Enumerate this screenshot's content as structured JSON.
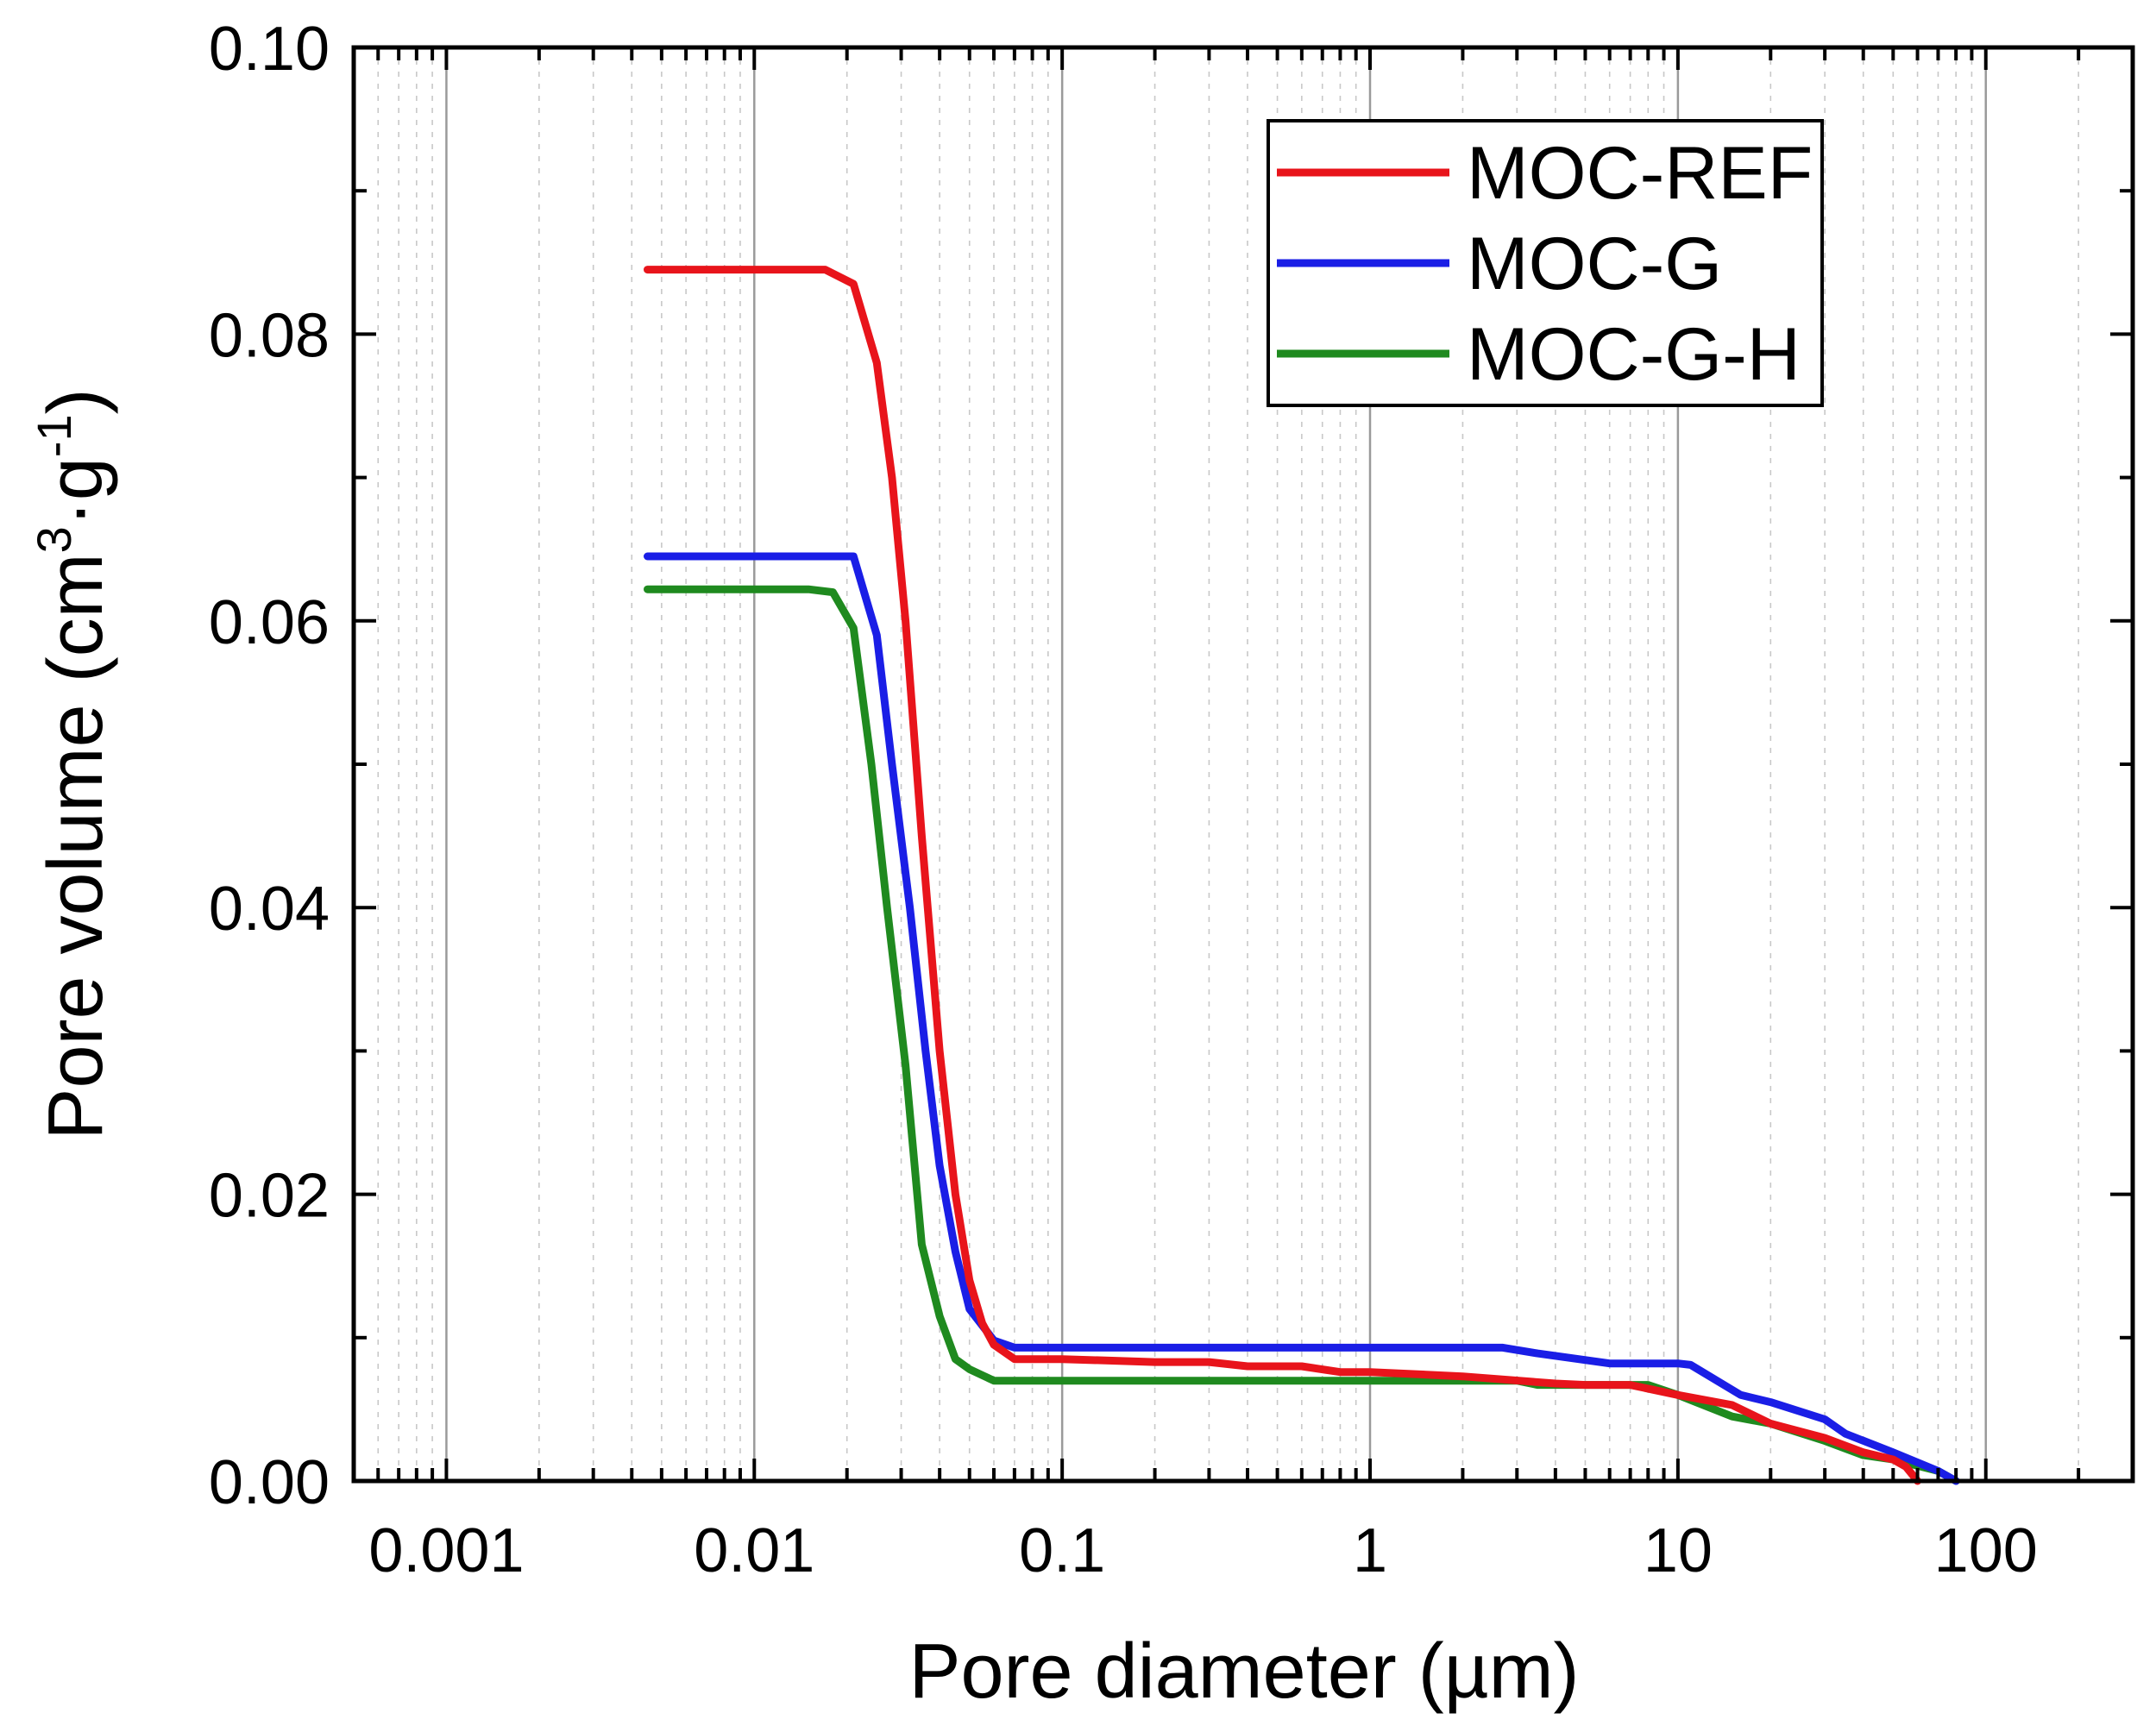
{
  "chart_data": {
    "type": "line",
    "title": "",
    "xlabel": "Pore diameter (µm)",
    "ylabel_main": "Pore volume (cm",
    "ylabel_sup1": "3",
    "ylabel_mid": "·g",
    "ylabel_sup2": "-1",
    "ylabel_end": ")",
    "x_scale": "log",
    "xlim": [
      0.0005,
      300
    ],
    "ylim": [
      0,
      0.1
    ],
    "x_ticks": [
      0.001,
      0.01,
      0.1,
      1,
      10,
      100
    ],
    "x_tick_labels": [
      "0.001",
      "0.01",
      "0.1",
      "1",
      "10",
      "100"
    ],
    "y_ticks": [
      0,
      0.02,
      0.04,
      0.06,
      0.08,
      0.1
    ],
    "y_tick_labels": [
      "0.00",
      "0.02",
      "0.04",
      "0.06",
      "0.08",
      "0.10"
    ],
    "grid": "vertical major and minor",
    "legend_position": "top-right",
    "series": [
      {
        "name": "MOC-REF",
        "color": "#e8141b",
        "x": [
          0.0045,
          0.017,
          0.021,
          0.025,
          0.028,
          0.031,
          0.035,
          0.04,
          0.045,
          0.05,
          0.055,
          0.06,
          0.07,
          0.1,
          0.2,
          0.3,
          0.4,
          0.6,
          0.8,
          1,
          2,
          4,
          5,
          7,
          10,
          15,
          20,
          30,
          40,
          50,
          55,
          60
        ],
        "y": [
          0.0845,
          0.0845,
          0.0835,
          0.078,
          0.07,
          0.06,
          0.045,
          0.03,
          0.02,
          0.014,
          0.011,
          0.0095,
          0.0085,
          0.0085,
          0.0083,
          0.0083,
          0.008,
          0.008,
          0.0076,
          0.0076,
          0.0073,
          0.0068,
          0.0067,
          0.0067,
          0.006,
          0.0053,
          0.004,
          0.003,
          0.002,
          0.0015,
          0.001,
          0.0
        ]
      },
      {
        "name": "MOC-G",
        "color": "#1a1ee6",
        "x": [
          0.0045,
          0.021,
          0.025,
          0.028,
          0.032,
          0.036,
          0.04,
          0.045,
          0.05,
          0.06,
          0.07,
          0.1,
          0.5,
          1,
          2,
          2.7,
          3.5,
          6,
          10,
          11,
          16,
          20,
          30,
          35,
          50,
          70,
          80
        ],
        "y": [
          0.0645,
          0.0645,
          0.059,
          0.05,
          0.04,
          0.03,
          0.022,
          0.016,
          0.012,
          0.0098,
          0.0093,
          0.0093,
          0.0093,
          0.0093,
          0.0093,
          0.0093,
          0.0089,
          0.0082,
          0.0082,
          0.0081,
          0.006,
          0.0055,
          0.0043,
          0.0033,
          0.002,
          0.0007,
          0.0
        ]
      },
      {
        "name": "MOC-G-H",
        "color": "#1f8a1f",
        "x": [
          0.0045,
          0.015,
          0.018,
          0.021,
          0.024,
          0.027,
          0.031,
          0.035,
          0.04,
          0.045,
          0.05,
          0.06,
          0.1,
          1,
          3,
          3.5,
          5,
          8,
          10,
          15,
          20,
          30,
          40,
          50,
          70,
          80
        ],
        "y": [
          0.0622,
          0.0622,
          0.062,
          0.0595,
          0.05,
          0.04,
          0.029,
          0.0165,
          0.0115,
          0.0085,
          0.0078,
          0.007,
          0.007,
          0.007,
          0.007,
          0.0067,
          0.0067,
          0.0067,
          0.006,
          0.0045,
          0.004,
          0.0028,
          0.0018,
          0.0015,
          0.0007,
          0.0
        ]
      }
    ]
  }
}
